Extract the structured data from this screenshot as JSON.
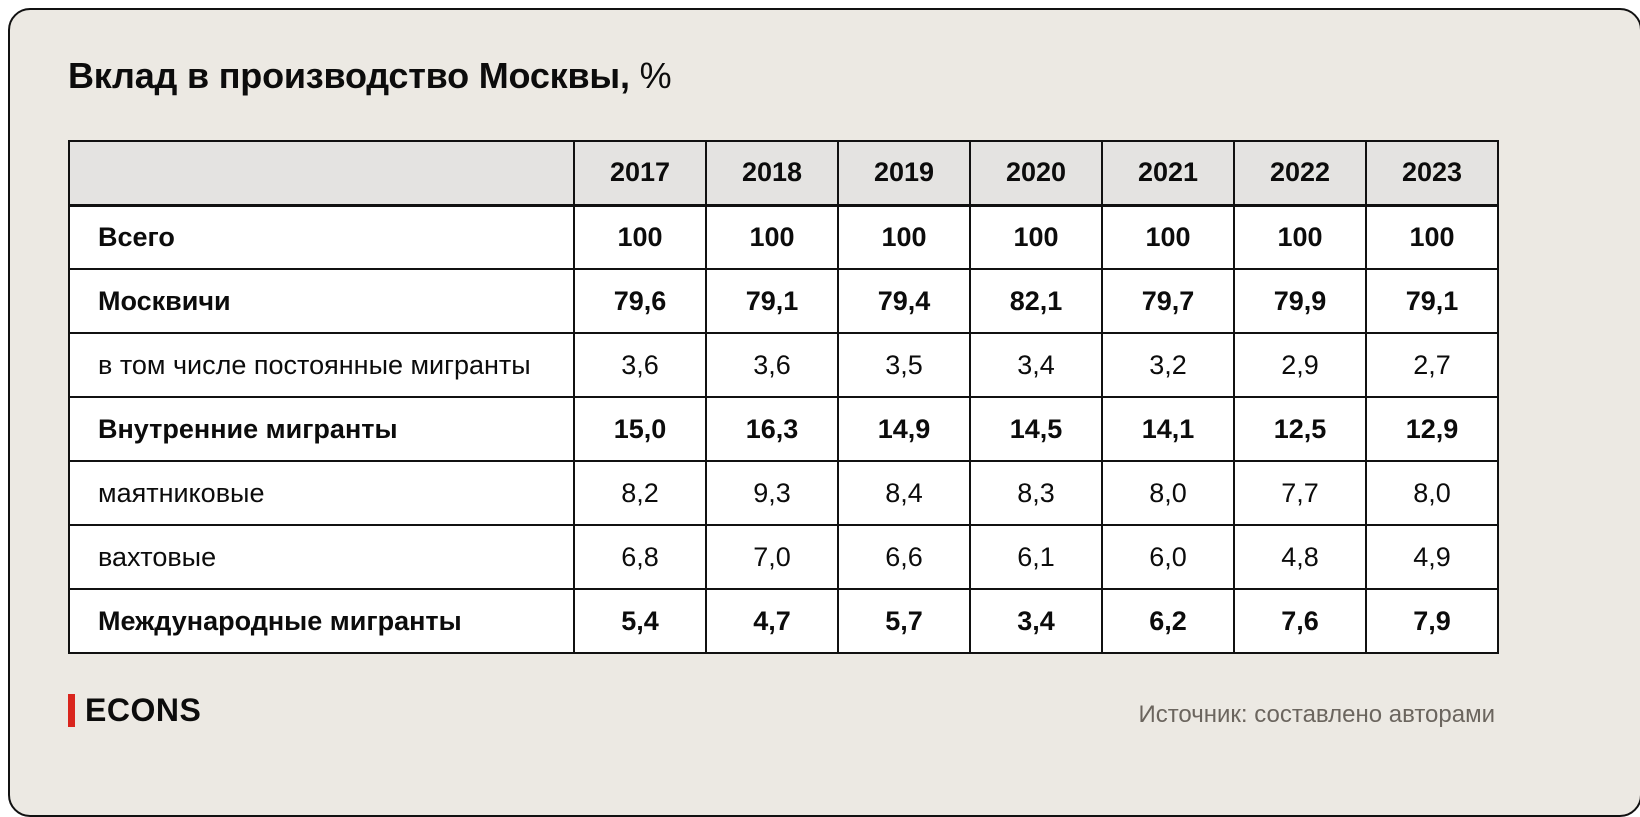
{
  "title": {
    "main": "Вклад в производство Москвы,",
    "suffix": " %"
  },
  "table": {
    "year_headers": [
      "2017",
      "2018",
      "2019",
      "2020",
      "2021",
      "2022",
      "2023"
    ],
    "rows": [
      {
        "label": "Всего",
        "bold": true,
        "values": [
          "100",
          "100",
          "100",
          "100",
          "100",
          "100",
          "100"
        ]
      },
      {
        "label": "Москвичи",
        "bold": true,
        "values": [
          "79,6",
          "79,1",
          "79,4",
          "82,1",
          "79,7",
          "79,9",
          "79,1"
        ]
      },
      {
        "label": "в том числе постоянные мигранты",
        "bold": false,
        "values": [
          "3,6",
          "3,6",
          "3,5",
          "3,4",
          "3,2",
          "2,9",
          "2,7"
        ]
      },
      {
        "label": "Внутренние мигранты",
        "bold": true,
        "values": [
          "15,0",
          "16,3",
          "14,9",
          "14,5",
          "14,1",
          "12,5",
          "12,9"
        ]
      },
      {
        "label": "маятниковые",
        "bold": false,
        "values": [
          "8,2",
          "9,3",
          "8,4",
          "8,3",
          "8,0",
          "7,7",
          "8,0"
        ]
      },
      {
        "label": "вахтовые",
        "bold": false,
        "values": [
          "6,8",
          "7,0",
          "6,6",
          "6,1",
          "6,0",
          "4,8",
          "4,9"
        ]
      },
      {
        "label": "Международные мигранты",
        "bold": true,
        "values": [
          "5,4",
          "4,7",
          "5,7",
          "3,4",
          "6,2",
          "7,6",
          "7,9"
        ]
      }
    ]
  },
  "footer": {
    "logo_text": "ECONS",
    "source": "Источник: составлено авторами"
  },
  "colors": {
    "background": "#ECE9E3",
    "header_bg": "#E4E3E1",
    "border": "#111111",
    "accent_red": "#D9251D",
    "source_text": "#6B655E"
  },
  "chart_data": {
    "type": "table",
    "title": "Вклад в производство Москвы, %",
    "columns": [
      "",
      "2017",
      "2018",
      "2019",
      "2020",
      "2021",
      "2022",
      "2023"
    ],
    "rows": [
      [
        "Всего",
        100,
        100,
        100,
        100,
        100,
        100,
        100
      ],
      [
        "Москвичи",
        79.6,
        79.1,
        79.4,
        82.1,
        79.7,
        79.9,
        79.1
      ],
      [
        "в том числе постоянные мигранты",
        3.6,
        3.6,
        3.5,
        3.4,
        3.2,
        2.9,
        2.7
      ],
      [
        "Внутренние мигранты",
        15.0,
        16.3,
        14.9,
        14.5,
        14.1,
        12.5,
        12.9
      ],
      [
        "маятниковые",
        8.2,
        9.3,
        8.4,
        8.3,
        8.0,
        7.7,
        8.0
      ],
      [
        "вахтовые",
        6.8,
        7.0,
        6.6,
        6.1,
        6.0,
        4.8,
        4.9
      ],
      [
        "Международные мигранты",
        5.4,
        4.7,
        5.7,
        3.4,
        6.2,
        7.6,
        7.9
      ]
    ],
    "source": "Источник: составлено авторами"
  }
}
